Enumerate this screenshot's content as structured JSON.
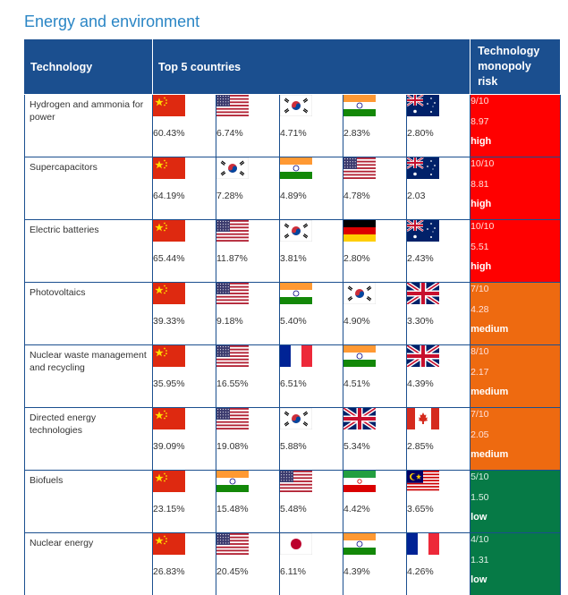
{
  "page_title": "Energy and environment",
  "headers": {
    "technology": "Technology",
    "top5": "Top 5 countries",
    "risk": "Technology monopoly risk"
  },
  "rows": [
    {
      "technology": "Hydrogen and ammonia for power",
      "countries": [
        {
          "flag": "china",
          "pct": "60.43%"
        },
        {
          "flag": "usa",
          "pct": "6.74%"
        },
        {
          "flag": "south-korea",
          "pct": "4.71%"
        },
        {
          "flag": "india",
          "pct": "2.83%"
        },
        {
          "flag": "australia",
          "pct": "2.80%"
        }
      ],
      "risk": {
        "score": "9/10",
        "value": "8.97",
        "level": "high",
        "color": "#ff0000"
      }
    },
    {
      "technology": "Supercapacitors",
      "countries": [
        {
          "flag": "china",
          "pct": "64.19%"
        },
        {
          "flag": "south-korea",
          "pct": "7.28%"
        },
        {
          "flag": "india",
          "pct": "4.89%"
        },
        {
          "flag": "usa",
          "pct": "4.78%"
        },
        {
          "flag": "australia",
          "pct": "2.03"
        }
      ],
      "risk": {
        "score": "10/10",
        "value": "8.81",
        "level": "high",
        "color": "#ff0000"
      }
    },
    {
      "technology": "Electric batteries",
      "countries": [
        {
          "flag": "china",
          "pct": "65.44%"
        },
        {
          "flag": "usa",
          "pct": "11.87%"
        },
        {
          "flag": "south-korea",
          "pct": "3.81%"
        },
        {
          "flag": "germany",
          "pct": "2.80%"
        },
        {
          "flag": "australia",
          "pct": "2.43%"
        }
      ],
      "risk": {
        "score": "10/10",
        "value": "5.51",
        "level": "high",
        "color": "#ff0000"
      }
    },
    {
      "technology": "Photovoltaics",
      "countries": [
        {
          "flag": "china",
          "pct": "39.33%"
        },
        {
          "flag": "usa",
          "pct": "9.18%"
        },
        {
          "flag": "india",
          "pct": "5.40%"
        },
        {
          "flag": "south-korea",
          "pct": "4.90%"
        },
        {
          "flag": "uk",
          "pct": "3.30%"
        }
      ],
      "risk": {
        "score": "7/10",
        "value": "4.28",
        "level": "medium",
        "color": "#ee6a10"
      }
    },
    {
      "technology": "Nuclear waste management and recycling",
      "countries": [
        {
          "flag": "china",
          "pct": "35.95%"
        },
        {
          "flag": "usa",
          "pct": "16.55%"
        },
        {
          "flag": "france",
          "pct": "6.51%"
        },
        {
          "flag": "india",
          "pct": "4.51%"
        },
        {
          "flag": "uk",
          "pct": "4.39%"
        }
      ],
      "risk": {
        "score": "8/10",
        "value": "2.17",
        "level": "medium",
        "color": "#ee6a10"
      }
    },
    {
      "technology": "Directed energy technologies",
      "countries": [
        {
          "flag": "china",
          "pct": "39.09%"
        },
        {
          "flag": "usa",
          "pct": "19.08%"
        },
        {
          "flag": "south-korea",
          "pct": "5.88%"
        },
        {
          "flag": "uk",
          "pct": "5.34%"
        },
        {
          "flag": "canada",
          "pct": "2.85%"
        }
      ],
      "risk": {
        "score": "7/10",
        "value": "2.05",
        "level": "medium",
        "color": "#ee6a10"
      }
    },
    {
      "technology": "Biofuels",
      "countries": [
        {
          "flag": "china",
          "pct": "23.15%"
        },
        {
          "flag": "india",
          "pct": "15.48%"
        },
        {
          "flag": "usa",
          "pct": "5.48%"
        },
        {
          "flag": "iran",
          "pct": "4.42%"
        },
        {
          "flag": "malaysia",
          "pct": "3.65%"
        }
      ],
      "risk": {
        "score": "5/10",
        "value": "1.50",
        "level": "low",
        "color": "#067a46"
      }
    },
    {
      "technology": "Nuclear energy",
      "countries": [
        {
          "flag": "china",
          "pct": "26.83%"
        },
        {
          "flag": "usa",
          "pct": "20.45%"
        },
        {
          "flag": "japan",
          "pct": "6.11%"
        },
        {
          "flag": "india",
          "pct": "4.39%"
        },
        {
          "flag": "france",
          "pct": "4.26%"
        }
      ],
      "risk": {
        "score": "4/10",
        "value": "1.31",
        "level": "low",
        "color": "#067a46"
      }
    }
  ]
}
